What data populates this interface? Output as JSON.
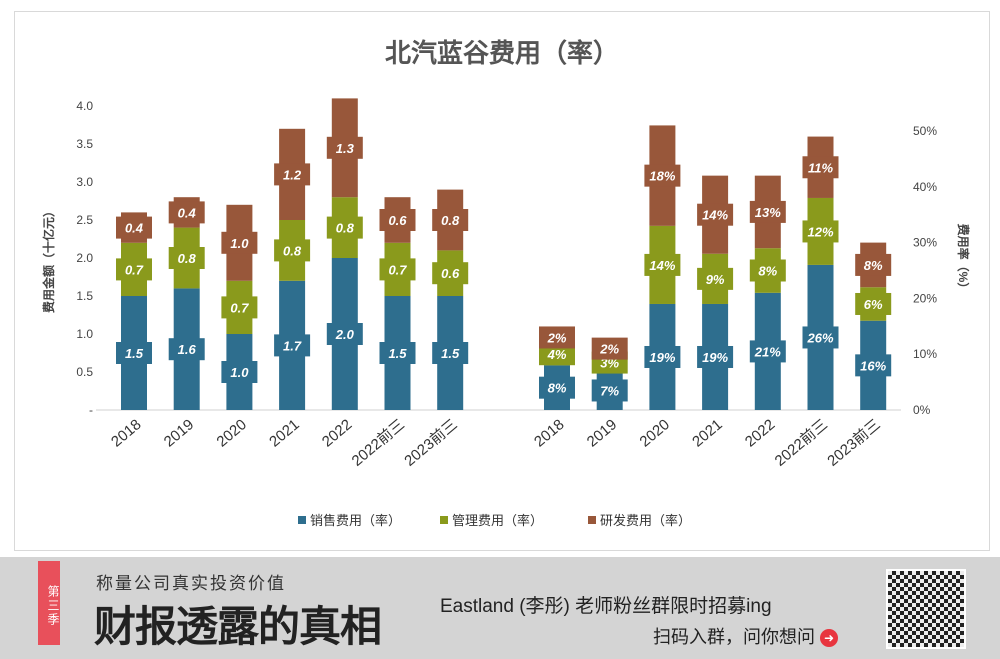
{
  "chart_data": [
    {
      "type": "bar",
      "stacked": true,
      "title": "北汽蓝谷费用（率）",
      "ylabel": "费用金额（十亿元）",
      "ylim": [
        0,
        4.0
      ],
      "yticks": [
        "-",
        "0.5",
        "1.0",
        "1.5",
        "2.0",
        "2.5",
        "3.0",
        "3.5",
        "4.0"
      ],
      "categories": [
        "2018",
        "2019",
        "2020",
        "2021",
        "2022",
        "2022前三",
        "2023前三"
      ],
      "series": [
        {
          "name": "销售费用（率）",
          "color": "#2e6e8e",
          "values": [
            1.5,
            1.6,
            1.0,
            1.7,
            2.0,
            1.5,
            1.5
          ],
          "labels": [
            "1.5",
            "1.6",
            "1.0",
            "1.7",
            "2.0",
            "1.5",
            "1.5"
          ]
        },
        {
          "name": "管理费用（率）",
          "color": "#8a9a1c",
          "values": [
            0.7,
            0.8,
            0.7,
            0.8,
            0.8,
            0.7,
            0.6
          ],
          "labels": [
            "0.7",
            "0.8",
            "0.7",
            "0.8",
            "0.8",
            "0.7",
            "0.6"
          ]
        },
        {
          "name": "研发费用（率）",
          "color": "#98573a",
          "values": [
            0.4,
            0.4,
            1.0,
            1.2,
            1.3,
            0.6,
            0.8
          ],
          "labels": [
            "0.4",
            "0.4",
            "1.0",
            "1.2",
            "1.3",
            "0.6",
            "0.8"
          ]
        }
      ]
    },
    {
      "type": "bar",
      "stacked": true,
      "ylabel": "费用率（%）",
      "ylim": [
        0,
        50
      ],
      "yticks": [
        "0%",
        "10%",
        "20%",
        "30%",
        "40%",
        "50%"
      ],
      "categories": [
        "2018",
        "2019",
        "2020",
        "2021",
        "2022",
        "2022前三",
        "2023前三"
      ],
      "series": [
        {
          "name": "销售费用率",
          "color": "#2e6e8e",
          "values": [
            8,
            7,
            19,
            19,
            21,
            26,
            16
          ],
          "labels": [
            "8%",
            "7%",
            "19%",
            "19%",
            "21%",
            "26%",
            "16%"
          ]
        },
        {
          "name": "管理费用率",
          "color": "#8a9a1c",
          "values": [
            4,
            3,
            14,
            9,
            8,
            12,
            6
          ],
          "labels": [
            "4%",
            "3%",
            "14%",
            "9%",
            "8%",
            "12%",
            "6%"
          ]
        },
        {
          "name": "研发费用率",
          "color": "#98573a",
          "values": [
            2,
            2,
            18,
            14,
            13,
            11,
            8
          ],
          "labels": [
            "2%",
            "2%",
            "18%",
            "14%",
            "13%",
            "11%",
            "8%"
          ]
        }
      ]
    }
  ],
  "legend": [
    "销售费用（率）",
    "管理费用（率）",
    "研发费用（率）"
  ],
  "banner": {
    "ribbon": "第三季",
    "subtitle": "称量公司真实投资价值",
    "title": "财报透露的真相",
    "promo": "Eastland (李彤) 老师粉丝群限时招募ing",
    "scan": "扫码入群，问你想问",
    "arrow": "➜"
  }
}
